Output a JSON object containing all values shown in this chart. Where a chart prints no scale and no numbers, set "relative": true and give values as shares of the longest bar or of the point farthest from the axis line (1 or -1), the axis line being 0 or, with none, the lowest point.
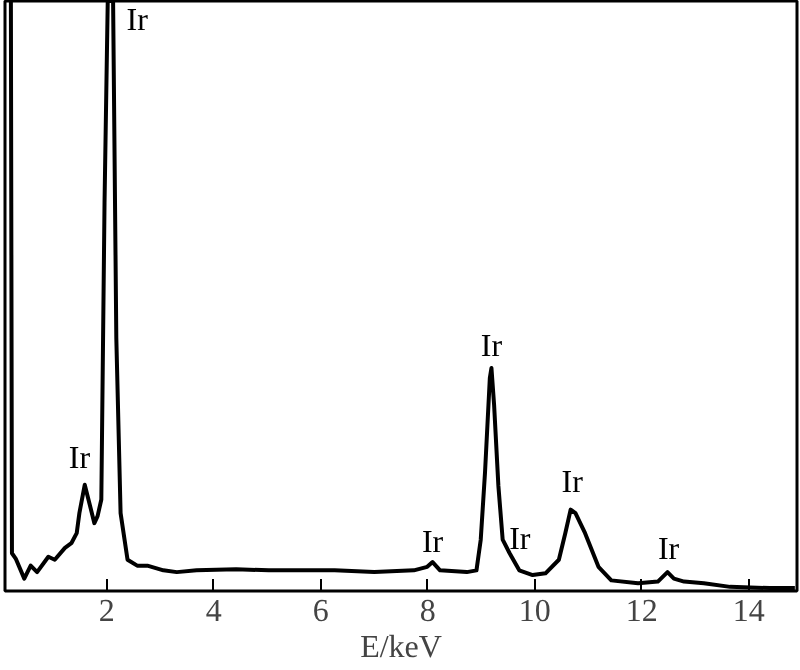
{
  "chart_data": {
    "type": "line",
    "relative": true,
    "xlabel": "E/keV",
    "xlim": [
      0.1,
      14.9
    ],
    "xticks": [
      2,
      4,
      6,
      8,
      10,
      12,
      14
    ],
    "grid": false,
    "marker": "none",
    "line_style": "solid",
    "series": [
      {
        "color": "#000000",
        "x": [
          0.21,
          0.23,
          0.3,
          0.46,
          0.58,
          0.7,
          0.91,
          1.03,
          1.22,
          1.34,
          1.44,
          1.49,
          1.59,
          1.69,
          1.77,
          1.83,
          1.9,
          1.96,
          2.02,
          2.12,
          2.18,
          2.26,
          2.39,
          2.57,
          2.76,
          3.06,
          3.31,
          3.68,
          4.42,
          5.03,
          6.26,
          7.0,
          7.74,
          7.99,
          8.09,
          8.23,
          8.73,
          8.91,
          8.99,
          9.07,
          9.16,
          9.19,
          9.24,
          9.32,
          9.4,
          9.53,
          9.71,
          9.96,
          10.2,
          10.45,
          10.57,
          10.67,
          10.76,
          10.94,
          11.19,
          11.43,
          11.93,
          12.3,
          12.48,
          12.6,
          12.79,
          13.16,
          13.65,
          14.39,
          14.86
        ],
        "values": [
          1.0,
          0.064,
          0.055,
          0.021,
          0.043,
          0.032,
          0.058,
          0.053,
          0.073,
          0.081,
          0.098,
          0.132,
          0.18,
          0.144,
          0.115,
          0.127,
          0.155,
          0.658,
          1.0,
          1.0,
          0.429,
          0.132,
          0.053,
          0.043,
          0.043,
          0.035,
          0.032,
          0.035,
          0.037,
          0.035,
          0.035,
          0.032,
          0.035,
          0.041,
          0.049,
          0.035,
          0.032,
          0.035,
          0.087,
          0.201,
          0.361,
          0.378,
          0.315,
          0.178,
          0.087,
          0.064,
          0.035,
          0.027,
          0.03,
          0.053,
          0.098,
          0.138,
          0.132,
          0.098,
          0.041,
          0.018,
          0.013,
          0.016,
          0.032,
          0.021,
          0.016,
          0.013,
          0.007,
          0.005,
          0.005
        ]
      }
    ],
    "annotations": [
      "Ir",
      {
        "text": "Ir",
        "x": 1.49,
        "y": 0.195
      },
      {
        "text": "Ir",
        "x": 8.09,
        "y": 0.053
      },
      {
        "text": "Ir",
        "x": 9.19,
        "y": 0.384
      },
      {
        "text": "Ir",
        "x": 9.72,
        "y": 0.058
      },
      {
        "text": "Ir",
        "x": 10.7,
        "y": 0.155
      },
      {
        "text": "Ir",
        "x": 12.5,
        "y": 0.041
      }
    ]
  }
}
